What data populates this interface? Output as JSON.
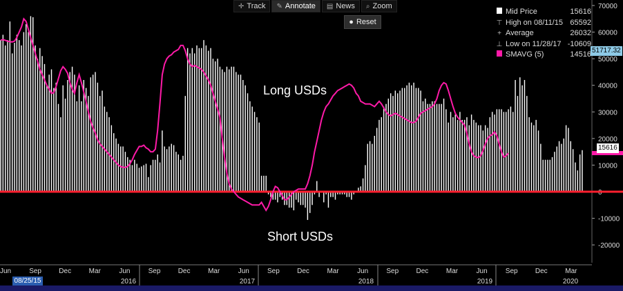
{
  "toolbar": {
    "track_label": "Track",
    "annotate_label": "Annotate",
    "news_label": "News",
    "zoom_label": "Zoom",
    "reset_label": "Reset"
  },
  "legend": {
    "items": [
      {
        "name": "Mid Price",
        "value": "15616",
        "icon": "white-square"
      },
      {
        "name": "High on 08/11/15",
        "value": "65592",
        "icon": "high-marker-icon"
      },
      {
        "name": "Average",
        "value": "26032",
        "icon": "average-marker-icon"
      },
      {
        "name": "Low on 11/28/17",
        "value": "-10609",
        "icon": "low-marker-icon"
      },
      {
        "name": "SMAVG (5)",
        "value": "14516",
        "icon": "pink-square"
      }
    ]
  },
  "tags": {
    "top_value": "51717.32",
    "last_value": "15616",
    "start_date": "08/25/15"
  },
  "annotations": {
    "long": "Long USDs",
    "short": "Short USDs"
  },
  "colors": {
    "bars": "#ffffff",
    "sma": "#ff1aa8",
    "zero_line": "#ff1f2e",
    "tag_top": "#8ecae6",
    "tag_last": "#ffffff",
    "tag_sma": "#ff1aa8"
  },
  "chart_data": {
    "type": "bar",
    "title": "",
    "ylim": [
      -25000,
      70000
    ],
    "y_ticks": [
      -20000,
      -10000,
      0,
      10000,
      20000,
      30000,
      40000,
      50000,
      60000,
      70000
    ],
    "x_month_labels": [
      "Jun",
      "Sep",
      "Dec",
      "Mar",
      "Jun",
      "Sep",
      "Dec",
      "Mar",
      "Jun",
      "Sep",
      "Dec",
      "Mar",
      "Jun",
      "Sep",
      "Dec",
      "Mar",
      "Jun",
      "Sep",
      "Dec",
      "Mar"
    ],
    "x_year_labels": [
      "2016",
      "2017",
      "2018",
      "2019",
      "2020"
    ],
    "x_range": [
      "2015-06",
      "2020-04"
    ],
    "frequency": "weekly",
    "series": [
      {
        "name": "Mid Price",
        "kind": "bar",
        "values": [
          57000,
          59000,
          55000,
          57000,
          64000,
          52000,
          56000,
          59000,
          57000,
          55000,
          60000,
          63000,
          60000,
          66000,
          65592,
          55000,
          50000,
          54000,
          51000,
          48000,
          40000,
          44000,
          46000,
          39000,
          41000,
          33000,
          28000,
          40000,
          35000,
          42000,
          45000,
          47000,
          44000,
          34000,
          40000,
          34000,
          42000,
          39000,
          36000,
          43000,
          44000,
          45000,
          41000,
          36000,
          38000,
          32000,
          30000,
          28000,
          25000,
          22000,
          20000,
          18000,
          17000,
          17000,
          15000,
          13000,
          12000,
          10000,
          12000,
          10500,
          9000,
          9500,
          10000,
          10500,
          5500,
          10000,
          12000,
          12000,
          14000,
          11000,
          23000,
          17000,
          16000,
          17000,
          18000,
          17500,
          15000,
          14000,
          12000,
          13500,
          36000,
          54000,
          52000,
          54000,
          52000,
          55000,
          54000,
          54000,
          57000,
          55000,
          53000,
          54000,
          50000,
          49000,
          50000,
          47000,
          46000,
          45000,
          47000,
          46000,
          47000,
          47000,
          45000,
          44000,
          44000,
          42000,
          40000,
          37000,
          34000,
          32000,
          30000,
          28000,
          26000,
          6000,
          6000,
          6000,
          -1000,
          -2000,
          -3000,
          -3000,
          -4000,
          -2000,
          -3000,
          -5000,
          -5000,
          -6000,
          -6000,
          -7000,
          -3000,
          -4000,
          -5000,
          -5000,
          -6000,
          -10609,
          -8000,
          -5000,
          -1000,
          4000,
          -2000,
          0,
          -4000,
          -1000,
          -6000,
          -2000,
          -2000,
          -3000,
          -1000,
          -1000,
          -1000,
          -1000,
          -2000,
          -2000,
          -3000,
          -1000,
          0,
          1500,
          2000,
          5000,
          10000,
          18000,
          19000,
          18000,
          21000,
          24000,
          27000,
          28000,
          32000,
          33000,
          35000,
          37000,
          36000,
          38000,
          37000,
          38000,
          39000,
          39000,
          40000,
          41000,
          40000,
          41000,
          39000,
          39000,
          38000,
          34000,
          35000,
          33000,
          33000,
          34000,
          34000,
          33000,
          33000,
          33000,
          35000,
          31000,
          26000,
          30000,
          28000,
          29000,
          27000,
          30000,
          27000,
          27000,
          28000,
          25000,
          29000,
          27000,
          26000,
          25000,
          25000,
          23000,
          25000,
          24000,
          28000,
          30000,
          29000,
          31000,
          31000,
          31000,
          30000,
          30000,
          31000,
          32000,
          30000,
          42000,
          36000,
          43000,
          40000,
          42000,
          36000,
          28000,
          26000,
          25000,
          27000,
          23000,
          18000,
          12000,
          12000,
          12000,
          12000,
          13000,
          15000,
          17000,
          19000,
          18000,
          20000,
          25000,
          24000,
          19000,
          16000,
          11000,
          8000,
          14000,
          15616
        ]
      },
      {
        "name": "SMAVG (5)",
        "kind": "line",
        "values": [
          57000,
          57200,
          56900,
          56600,
          56400,
          56300,
          56600,
          58000,
          60000,
          62000,
          65000,
          64000,
          61000,
          58000,
          55000,
          52000,
          49000,
          46000,
          44000,
          42000,
          40000,
          38500,
          37000,
          37200,
          39500,
          42500,
          45500,
          47000,
          46000,
          44500,
          41000,
          38500,
          37000,
          41000,
          44000,
          41000,
          37500,
          34000,
          30000,
          26500,
          24000,
          22000,
          19500,
          18000,
          17000,
          16000,
          15000,
          14000,
          13000,
          12000,
          11000,
          10000,
          9500,
          9200,
          9100,
          9500,
          10500,
          12000,
          14000,
          15500,
          17000,
          17000,
          17500,
          16500,
          16000,
          15000,
          15000,
          16000,
          23000,
          33000,
          44000,
          48000,
          50000,
          51000,
          51500,
          52500,
          53000,
          53500,
          55000,
          55000,
          53000,
          50000,
          48000,
          47000,
          47500,
          47000,
          46500,
          46000,
          45000,
          43500,
          42000,
          40000,
          37000,
          34000,
          31000,
          28000,
          20000,
          13000,
          7000,
          3000,
          1000,
          0,
          -1000,
          -2000,
          -2500,
          -3000,
          -3500,
          -4000,
          -4500,
          -5000,
          -5000,
          -5000,
          -5000,
          -4000,
          -5500,
          -7000,
          -5500,
          -3000,
          0,
          2000,
          1500,
          0,
          -1500,
          -3000,
          -3000,
          -2000,
          -1000,
          0,
          500,
          1000,
          1000,
          1000,
          1000,
          3000,
          6000,
          10000,
          15000,
          19000,
          23000,
          27000,
          30000,
          32000,
          33000,
          34500,
          36000,
          37000,
          38000,
          38500,
          39000,
          39500,
          40000,
          40500,
          40000,
          39000,
          37000,
          36000,
          34000,
          33500,
          33000,
          33000,
          33000,
          32500,
          32000,
          33000,
          34000,
          33000,
          31500,
          30000,
          29000,
          28500,
          29000,
          29500,
          29000,
          28500,
          28000,
          27500,
          27000,
          26500,
          26000,
          26000,
          26500,
          28000,
          29500,
          30000,
          30500,
          31000,
          31500,
          32000,
          33000,
          35000,
          38000,
          40000,
          41000,
          40500,
          38000,
          35000,
          32000,
          29500,
          28000,
          27000,
          26000,
          25000,
          22000,
          18000,
          15000,
          13500,
          13000,
          12800,
          13500,
          15500,
          18000,
          20000,
          21000,
          21500,
          22500,
          21000,
          18000,
          15000,
          13000,
          13500,
          14516
        ]
      }
    ]
  }
}
